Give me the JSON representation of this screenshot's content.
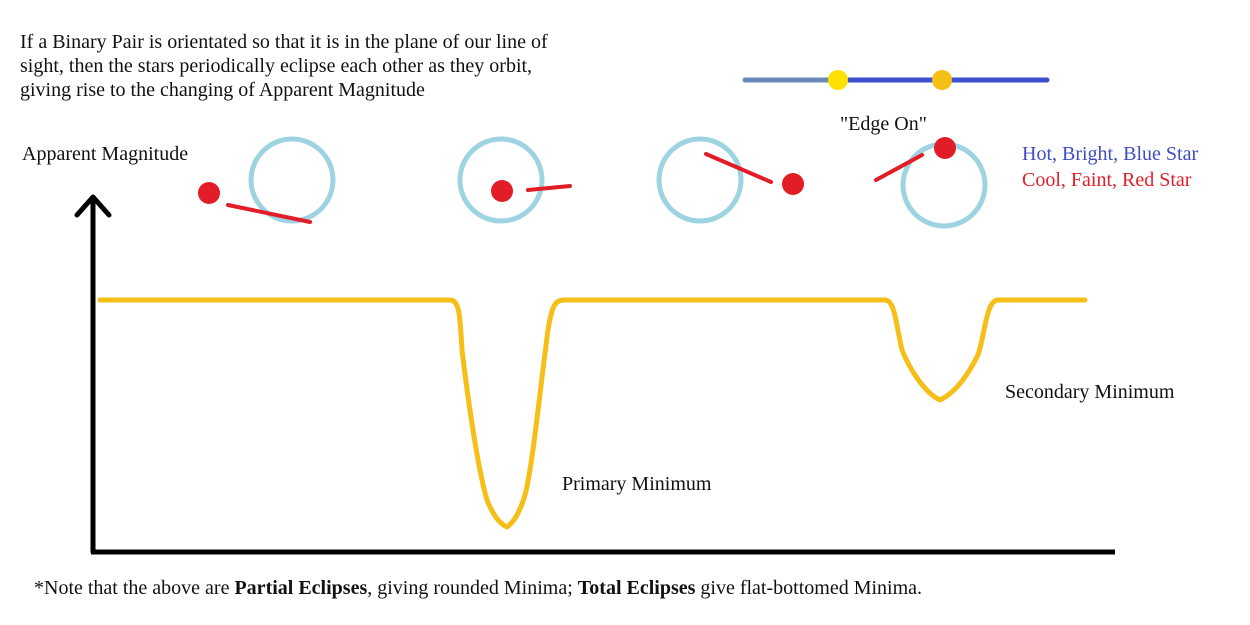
{
  "intro": {
    "line1": "If a Binary Pair is orientated so that it is in the plane of our line of",
    "line2": "sight, then the stars  periodically eclipse each other as they orbit,",
    "line3": "giving rise to the changing of Apparent Magnitude"
  },
  "edge_on_label": "\"Edge On\"",
  "axis_label": "Apparent Magnitude",
  "legend": {
    "hot": "Hot, Bright, Blue Star",
    "cool": "Cool, Faint, Red Star"
  },
  "minima": {
    "primary": "Primary Minimum",
    "secondary": "Secondary Minimum"
  },
  "footnote": {
    "p1": "*Note that the above are ",
    "b1": "Partial Eclipses",
    "p2": ", giving rounded Minima; ",
    "b2": "Total Eclipses",
    "p3": " give flat-bottomed Minima."
  },
  "colors": {
    "light_curve": "#f5bf18",
    "hot_star_outline": "#9ed3e2",
    "cool_star": "#e31d27",
    "axis": "#000000",
    "edge_line_left": "#6a88b8",
    "edge_line_right": "#3d4fcc",
    "edge_star_left": "#ffe000",
    "edge_star_right": "#f5c016"
  }
}
